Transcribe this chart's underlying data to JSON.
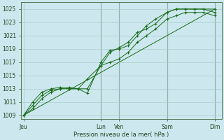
{
  "xlabel": "Pression niveau de la mer( hPa )",
  "background_color": "#cce8ee",
  "grid_color": "#aacccc",
  "line_color": "#1a6b1a",
  "ylim": [
    1008.5,
    1026.0
  ],
  "yticks": [
    1009,
    1011,
    1013,
    1015,
    1017,
    1019,
    1021,
    1023,
    1025
  ],
  "x_day_labels": [
    "Jeu",
    "Lun",
    "Ven",
    "Sam",
    "Dim"
  ],
  "x_day_positions": [
    0,
    34,
    42,
    63,
    84
  ],
  "x_vlines": [
    34,
    42,
    63,
    84
  ],
  "xlim": [
    -1,
    87
  ],
  "series1": {
    "x": [
      0,
      4,
      8,
      12,
      16,
      20,
      24,
      28,
      34,
      38,
      42,
      46,
      50,
      54,
      58,
      63,
      67,
      71,
      75,
      79,
      84
    ],
    "y": [
      1009,
      1010.5,
      1012.0,
      1012.8,
      1013.0,
      1013.2,
      1013.0,
      1013.0,
      1016.5,
      1018.5,
      1019.2,
      1020.0,
      1021.5,
      1022.0,
      1022.8,
      1024.5,
      1025.0,
      1025.0,
      1025.0,
      1025.0,
      1024.5
    ]
  },
  "series2": {
    "x": [
      0,
      4,
      8,
      12,
      16,
      20,
      24,
      28,
      34,
      38,
      42,
      46,
      50,
      54,
      58,
      63,
      67,
      71,
      75,
      79,
      84
    ],
    "y": [
      1009,
      1011.0,
      1012.5,
      1013.0,
      1013.2,
      1013.0,
      1013.0,
      1012.3,
      1017.0,
      1018.8,
      1019.0,
      1019.5,
      1021.0,
      1022.5,
      1023.5,
      1024.5,
      1025.0,
      1025.0,
      1025.0,
      1025.0,
      1025.0
    ]
  },
  "series3": {
    "x": [
      0,
      4,
      8,
      12,
      16,
      20,
      24,
      28,
      34,
      38,
      42,
      46,
      50,
      54,
      58,
      63,
      67,
      71,
      75,
      79,
      84
    ],
    "y": [
      1009,
      1010.0,
      1011.5,
      1012.5,
      1013.0,
      1013.0,
      1013.0,
      1014.5,
      1016.5,
      1017.0,
      1017.5,
      1018.5,
      1020.0,
      1021.0,
      1022.0,
      1023.5,
      1024.0,
      1024.5,
      1024.5,
      1024.5,
      1024.0
    ]
  },
  "series_diag": {
    "x": [
      0,
      84
    ],
    "y": [
      1009,
      1025
    ]
  }
}
